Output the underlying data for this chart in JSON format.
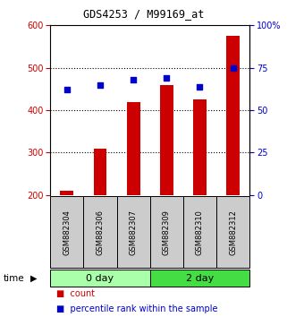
{
  "title": "GDS4253 / M99169_at",
  "samples": [
    "GSM882304",
    "GSM882306",
    "GSM882307",
    "GSM882309",
    "GSM882310",
    "GSM882312"
  ],
  "count_values": [
    210,
    310,
    420,
    460,
    425,
    575
  ],
  "percentile_values": [
    62,
    65,
    68,
    69,
    64,
    75
  ],
  "groups": [
    {
      "label": "0 day",
      "color_light": "#ccffcc",
      "color_dark": "#66dd66"
    },
    {
      "label": "2 day",
      "color_light": "#66ee66",
      "color_dark": "#33cc33"
    }
  ],
  "bar_color": "#cc0000",
  "dot_color": "#0000cc",
  "left_ylim": [
    200,
    600
  ],
  "left_yticks": [
    200,
    300,
    400,
    500,
    600
  ],
  "right_ylim": [
    0,
    100
  ],
  "right_yticks": [
    0,
    25,
    50,
    75,
    100
  ],
  "right_yticklabels": [
    "0",
    "25",
    "50",
    "75",
    "100%"
  ],
  "left_tick_color": "#cc0000",
  "right_tick_color": "#0000cc",
  "bg_color": "#ffffff",
  "grid_yticks": [
    300,
    400,
    500
  ],
  "sample_box_color": "#cccccc",
  "group0_color": "#aaffaa",
  "group1_color": "#44dd44",
  "legend_items": [
    "count",
    "percentile rank within the sample"
  ]
}
